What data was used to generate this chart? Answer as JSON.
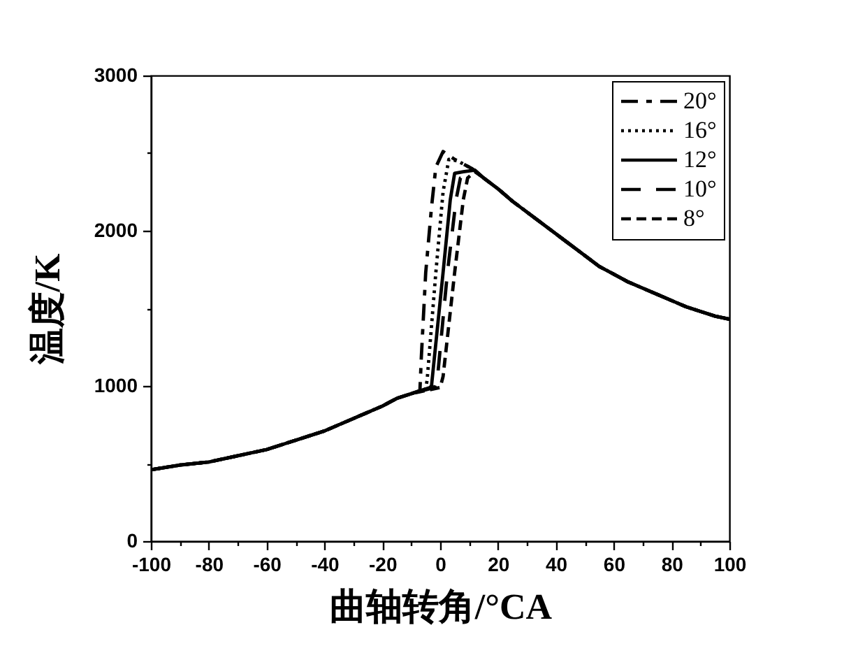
{
  "chart_data": {
    "type": "line",
    "xlabel": "曲轴转角/°CA",
    "ylabel": "温度/K",
    "xlim": [
      -100,
      100
    ],
    "ylim": [
      0,
      3000
    ],
    "xticks": [
      -100,
      {
        "value": -90,
        "label": null
      },
      -80,
      {
        "value": -70,
        "label": null
      },
      -60,
      {
        "value": -50,
        "label": null
      },
      -40,
      {
        "value": -30,
        "label": null
      },
      -20,
      {
        "value": -10,
        "label": null
      },
      0,
      {
        "value": 10,
        "label": null
      },
      20,
      {
        "value": 30,
        "label": null
      },
      40,
      {
        "value": 50,
        "label": null
      },
      60,
      {
        "value": 70,
        "label": null
      },
      80,
      {
        "value": 90,
        "label": null
      },
      100
    ],
    "yticks": [
      0,
      {
        "value": 500,
        "label": null
      },
      1000,
      {
        "value": 1500,
        "label": null
      },
      2000,
      {
        "value": 2500,
        "label": null
      },
      3000
    ],
    "grid": false,
    "legend": "top right",
    "series": [
      {
        "name": "20°",
        "color": "#000000",
        "line_style": "dashdot",
        "x": [
          -100,
          -90,
          -80,
          -70,
          -60,
          -50,
          -40,
          -30,
          -20,
          -15,
          -10,
          -7,
          -6.5,
          -5,
          -3,
          -1.5,
          1,
          5,
          11,
          15,
          20,
          25,
          30,
          35,
          40,
          45,
          50,
          55,
          60,
          65,
          70,
          75,
          80,
          85,
          90,
          95,
          100
        ],
        "values": [
          460,
          490,
          510,
          550,
          590,
          650,
          710,
          790,
          870,
          920,
          950,
          970,
          1190,
          1730,
          2150,
          2410,
          2510,
          2460,
          2400,
          2340,
          2270,
          2190,
          2120,
          2050,
          1980,
          1910,
          1840,
          1770,
          1720,
          1670,
          1630,
          1590,
          1550,
          1510,
          1480,
          1450,
          1430
        ]
      },
      {
        "name": "16°",
        "color": "#000000",
        "line_style": "dotted",
        "x": [
          -100,
          -90,
          -80,
          -70,
          -60,
          -50,
          -40,
          -30,
          -20,
          -15,
          -10,
          -5,
          -4.5,
          -1.5,
          1,
          3,
          6,
          11,
          15,
          20,
          25,
          30,
          35,
          40,
          45,
          50,
          55,
          60,
          65,
          70,
          75,
          80,
          85,
          90,
          95,
          100
        ],
        "values": [
          460,
          490,
          510,
          550,
          590,
          650,
          710,
          790,
          870,
          920,
          950,
          980,
          1040,
          1730,
          2250,
          2460,
          2450,
          2400,
          2340,
          2270,
          2190,
          2120,
          2050,
          1980,
          1910,
          1840,
          1770,
          1720,
          1670,
          1630,
          1590,
          1550,
          1510,
          1480,
          1450,
          1430
        ]
      },
      {
        "name": "12°",
        "color": "#000000",
        "line_style": "solid",
        "x": [
          -100,
          -90,
          -80,
          -70,
          -60,
          -50,
          -40,
          -30,
          -20,
          -15,
          -10,
          -3.5,
          -3,
          1,
          3.5,
          5,
          8,
          12,
          15,
          20,
          25,
          30,
          35,
          40,
          45,
          50,
          55,
          60,
          65,
          70,
          75,
          80,
          85,
          90,
          95,
          100
        ],
        "values": [
          460,
          490,
          510,
          550,
          590,
          650,
          710,
          790,
          870,
          920,
          950,
          990,
          1000,
          1730,
          2200,
          2370,
          2380,
          2390,
          2340,
          2270,
          2190,
          2120,
          2050,
          1980,
          1910,
          1840,
          1770,
          1720,
          1670,
          1630,
          1590,
          1550,
          1510,
          1480,
          1450,
          1430
        ]
      },
      {
        "name": "10°",
        "color": "#000000",
        "line_style": "longdash",
        "x": [
          -100,
          -90,
          -80,
          -70,
          -60,
          -50,
          -40,
          -30,
          -20,
          -15,
          -10,
          -2,
          -1,
          2.5,
          5.5,
          7,
          10,
          12,
          15,
          20,
          25,
          30,
          35,
          40,
          45,
          50,
          55,
          60,
          65,
          70,
          75,
          80,
          85,
          90,
          95,
          100
        ],
        "values": [
          460,
          490,
          510,
          550,
          590,
          650,
          710,
          790,
          870,
          920,
          950,
          990,
          1040,
          1730,
          2200,
          2340,
          2370,
          2390,
          2340,
          2270,
          2190,
          2120,
          2050,
          1980,
          1910,
          1840,
          1770,
          1720,
          1670,
          1630,
          1590,
          1550,
          1510,
          1480,
          1450,
          1430
        ]
      },
      {
        "name": "8°",
        "color": "#000000",
        "line_style": "dashed",
        "x": [
          -100,
          -90,
          -80,
          -70,
          -60,
          -50,
          -40,
          -30,
          -20,
          -15,
          -10,
          0,
          1,
          5,
          8,
          9.5,
          12,
          15,
          20,
          25,
          30,
          35,
          40,
          45,
          50,
          55,
          60,
          65,
          70,
          75,
          80,
          85,
          90,
          95,
          100
        ],
        "values": [
          460,
          490,
          510,
          550,
          590,
          650,
          710,
          790,
          870,
          920,
          950,
          990,
          1060,
          1730,
          2200,
          2340,
          2380,
          2340,
          2270,
          2190,
          2120,
          2050,
          1980,
          1910,
          1840,
          1770,
          1720,
          1670,
          1630,
          1590,
          1550,
          1510,
          1480,
          1450,
          1430
        ]
      }
    ]
  }
}
